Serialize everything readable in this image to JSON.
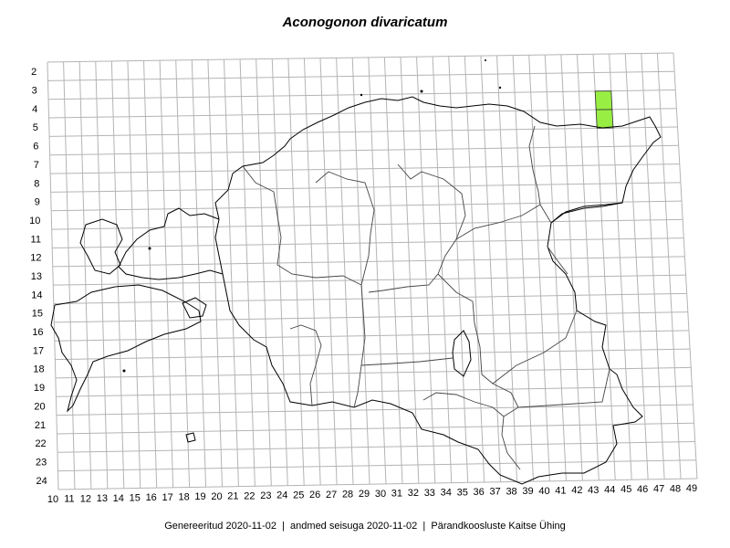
{
  "title": "Aconogonon divaricatum",
  "footer": {
    "generated": "Genereeritud 2020-11-02",
    "data_state": "andmed seisuga 2020-11-02",
    "org": "Pärandkoosluste Kaitse Ühing",
    "separator": "|"
  },
  "grid": {
    "row_labels": [
      "2",
      "3",
      "4",
      "5",
      "6",
      "7",
      "8",
      "9",
      "10",
      "11",
      "12",
      "13",
      "14",
      "15",
      "16",
      "17",
      "18",
      "19",
      "20",
      "21",
      "22",
      "23",
      "24"
    ],
    "col_labels": [
      "10",
      "11",
      "12",
      "13",
      "14",
      "15",
      "16",
      "17",
      "18",
      "19",
      "20",
      "21",
      "22",
      "23",
      "24",
      "25",
      "26",
      "27",
      "28",
      "29",
      "30",
      "31",
      "32",
      "33",
      "34",
      "35",
      "36",
      "37",
      "38",
      "39",
      "40",
      "41",
      "42",
      "43",
      "44",
      "45",
      "46",
      "47",
      "48",
      "49"
    ]
  },
  "occurrences": [
    {
      "col": "44",
      "row": "4",
      "color": "#99ee44"
    },
    {
      "col": "44",
      "row": "5",
      "color": "#99ee44"
    }
  ],
  "colors": {
    "grid": "#b4b4b4",
    "coast": "#000000",
    "county_border": "#555555"
  }
}
